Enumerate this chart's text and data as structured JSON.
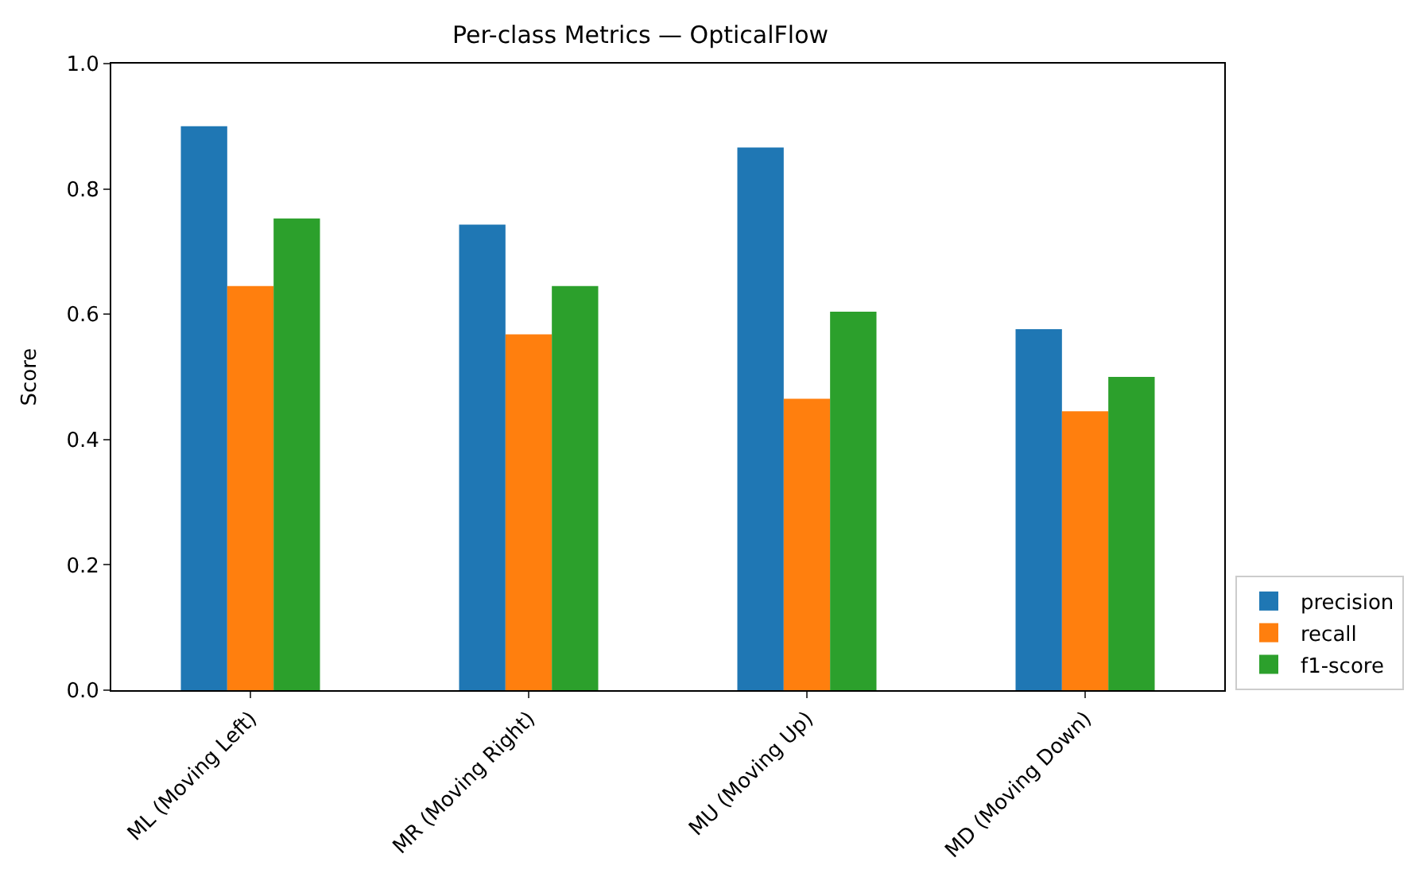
{
  "chart_data": {
    "type": "bar",
    "title": "Per-class Metrics — OpticalFlow",
    "ylabel": "Score",
    "categories": [
      "ML (Moving Left)",
      "MR (Moving Right)",
      "MU (Moving Up)",
      "MD (Moving Down)"
    ],
    "series": [
      {
        "name": "precision",
        "color": "#1f77b4",
        "values": [
          0.9,
          0.743,
          0.866,
          0.576
        ]
      },
      {
        "name": "recall",
        "color": "#ff7f0e",
        "values": [
          0.645,
          0.568,
          0.465,
          0.445
        ]
      },
      {
        "name": "f1-score",
        "color": "#2ca02c",
        "values": [
          0.753,
          0.645,
          0.604,
          0.5
        ]
      }
    ],
    "ylim": [
      0,
      1.0
    ],
    "yticks": [
      {
        "value": 0,
        "label": "0.0"
      },
      {
        "value": 0.2,
        "label": "0.2"
      },
      {
        "value": 0.4,
        "label": "0.4"
      },
      {
        "value": 0.6,
        "label": "0.6"
      },
      {
        "value": 0.8,
        "label": "0.8"
      },
      {
        "value": 1.0,
        "label": "1.0"
      }
    ],
    "grid": false,
    "legend": "bottom right"
  }
}
